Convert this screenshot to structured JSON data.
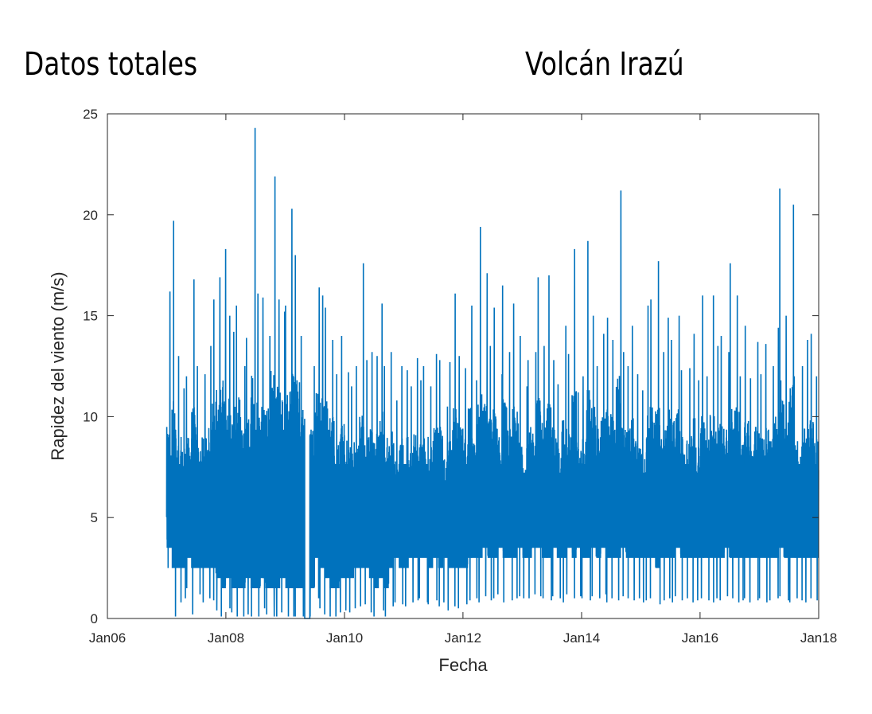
{
  "header": {
    "left_title": "Datos totales",
    "right_title": "Volcán Irazú"
  },
  "chart_data": {
    "type": "line",
    "xlabel": "Fecha",
    "ylabel": "Rapidez del viento (m/s)",
    "x_ticks": [
      "Jan06",
      "Jan08",
      "Jan10",
      "Jan12",
      "Jan14",
      "Jan16",
      "Jan18"
    ],
    "y_ticks": [
      0,
      5,
      10,
      15,
      20,
      25
    ],
    "xlim": [
      "2006-01-01",
      "2018-01-01"
    ],
    "ylim": [
      0,
      25
    ],
    "grid": false,
    "color": "#0072BD",
    "series": [
      {
        "x": [
          "2007-01",
          "2007-02",
          "2007-03",
          "2007-04",
          "2007-05",
          "2007-06",
          "2007-07",
          "2007-08",
          "2007-09",
          "2007-10",
          "2007-11",
          "2007-12",
          "2008-01",
          "2008-02",
          "2008-03",
          "2008-04",
          "2008-05",
          "2008-06",
          "2008-07",
          "2008-08",
          "2008-09",
          "2008-10",
          "2008-11",
          "2008-12",
          "2009-01",
          "2009-02",
          "2009-03",
          "2009-04",
          "2009-05",
          "2009-06",
          "2009-07",
          "2009-08",
          "2009-09",
          "2009-10",
          "2009-11",
          "2009-12",
          "2010-01",
          "2010-02",
          "2010-03",
          "2010-04",
          "2010-05",
          "2010-06",
          "2010-07",
          "2010-08",
          "2010-09",
          "2010-10",
          "2010-11",
          "2010-12",
          "2011-01",
          "2011-02",
          "2011-03",
          "2011-04",
          "2011-05",
          "2011-06",
          "2011-07",
          "2011-08",
          "2011-09",
          "2011-10",
          "2011-11",
          "2011-12",
          "2012-01",
          "2012-02",
          "2012-03",
          "2012-04",
          "2012-05",
          "2012-06",
          "2012-07",
          "2012-08",
          "2012-09",
          "2012-10",
          "2012-11",
          "2012-12",
          "2013-01",
          "2013-02",
          "2013-03",
          "2013-04",
          "2013-05",
          "2013-06",
          "2013-07",
          "2013-08",
          "2013-09",
          "2013-10",
          "2013-11",
          "2013-12",
          "2014-01",
          "2014-02",
          "2014-03",
          "2014-04",
          "2014-05",
          "2014-06",
          "2014-07",
          "2014-08",
          "2014-09",
          "2014-10",
          "2014-11",
          "2014-12",
          "2015-01",
          "2015-02",
          "2015-03",
          "2015-04",
          "2015-05",
          "2015-06",
          "2015-07",
          "2015-08",
          "2015-09",
          "2015-10",
          "2015-11",
          "2015-12",
          "2016-01",
          "2016-02",
          "2016-03",
          "2016-04",
          "2016-05",
          "2016-06",
          "2016-07",
          "2016-08",
          "2016-09",
          "2016-10",
          "2016-11",
          "2016-12",
          "2017-01",
          "2017-02",
          "2017-03",
          "2017-04",
          "2017-05",
          "2017-06",
          "2017-07",
          "2017-08",
          "2017-09",
          "2017-10",
          "2017-11",
          "2017-12"
        ],
        "max": [
          16.2,
          19.7,
          13.0,
          11.4,
          12.0,
          16.8,
          12.5,
          12.1,
          13.5,
          15.8,
          16.9,
          18.3,
          15.0,
          14.2,
          15.5,
          12.5,
          13.9,
          24.3,
          16.1,
          15.9,
          14.0,
          21.9,
          15.8,
          15.2,
          15.5,
          20.3,
          18.0,
          14.0,
          0.0,
          12.5,
          16.4,
          16.0,
          15.4,
          13.8,
          12.1,
          14.0,
          12.2,
          11.5,
          12.5,
          17.6,
          12.8,
          13.2,
          13.0,
          15.6,
          12.5,
          13.2,
          10.8,
          12.5,
          12.3,
          11.5,
          12.9,
          11.8,
          12.5,
          11.5,
          13.1,
          12.8,
          10.5,
          12.7,
          16.1,
          13.0,
          12.4,
          15.5,
          11.8,
          19.4,
          17.1,
          13.5,
          15.4,
          12.1,
          16.5,
          13.2,
          15.6,
          14.0,
          11.5,
          12.8,
          13.2,
          16.9,
          13.5,
          17.0,
          12.8,
          11.6,
          14.5,
          13.1,
          18.3,
          11.2,
          12.0,
          18.7,
          15.0,
          12.5,
          14.1,
          14.9,
          13.8,
          21.2,
          13.2,
          12.5,
          14.5,
          12.1,
          11.3,
          15.5,
          15.8,
          17.7,
          13.2,
          14.9,
          13.8,
          15.0,
          12.3,
          12.4,
          14.1,
          11.8,
          16.0,
          12.0,
          16.0,
          13.5,
          14.0,
          13.2,
          17.6,
          16.0,
          12.0,
          14.5,
          11.9,
          13.7,
          12.1,
          13.6,
          12.5,
          14.4,
          21.3,
          15.0,
          20.5,
          12.0,
          12.5,
          13.8,
          14.1,
          12.0
        ],
        "min": [
          2.5,
          0.1,
          0.8,
          1.0,
          1.5,
          0.2,
          1.2,
          0.8,
          1.0,
          0.9,
          0.4,
          0.1,
          0.5,
          0.3,
          0.1,
          0.1,
          0.2,
          0.1,
          0.1,
          0.5,
          0.2,
          0.1,
          0.1,
          0.3,
          0.1,
          0.1,
          0.1,
          0.1,
          0.0,
          0.1,
          1.0,
          0.5,
          0.2,
          0.1,
          0.1,
          0.3,
          0.4,
          0.3,
          0.5,
          0.6,
          0.7,
          0.3,
          0.1,
          0.4,
          0.1,
          0.6,
          0.8,
          0.7,
          0.6,
          0.8,
          0.9,
          1.0,
          0.8,
          0.7,
          0.9,
          0.6,
          0.8,
          0.4,
          0.6,
          0.5,
          0.7,
          0.9,
          1.0,
          0.8,
          1.1,
          0.9,
          1.0,
          1.2,
          0.8,
          0.9,
          1.0,
          1.1,
          1.0,
          1.0,
          1.2,
          1.1,
          1.0,
          0.9,
          1.1,
          1.0,
          0.8,
          1.2,
          1.0,
          1.1,
          1.0,
          0.9,
          1.1,
          1.0,
          1.2,
          0.8,
          1.0,
          0.9,
          1.1,
          1.0,
          0.9,
          1.0,
          0.8,
          0.9,
          1.0,
          0.7,
          0.9,
          1.0,
          0.8,
          1.1,
          0.9,
          1.0,
          0.8,
          0.9,
          1.0,
          0.9,
          0.8,
          1.0,
          0.9,
          1.1,
          1.0,
          0.8,
          0.9,
          1.0,
          0.8,
          0.9,
          1.0,
          0.8,
          0.9,
          1.0,
          1.1,
          0.9,
          0.8,
          1.0,
          0.9,
          0.8,
          1.0,
          0.9
        ],
        "typical_low": [
          3.5,
          2.5,
          2.5,
          2.5,
          3.0,
          2.5,
          2.5,
          2.5,
          2.5,
          2.5,
          2.0,
          1.5,
          2.0,
          1.5,
          1.5,
          1.5,
          2.0,
          1.5,
          1.5,
          2.0,
          1.5,
          1.5,
          1.5,
          2.0,
          1.5,
          1.5,
          1.5,
          1.5,
          0.0,
          1.5,
          3.0,
          2.5,
          2.0,
          1.5,
          1.5,
          2.0,
          2.0,
          2.0,
          2.5,
          2.5,
          2.5,
          2.0,
          1.5,
          2.0,
          1.5,
          2.5,
          3.0,
          2.5,
          2.5,
          3.0,
          3.0,
          3.0,
          3.0,
          2.5,
          3.0,
          2.5,
          3.0,
          2.5,
          2.5,
          2.5,
          2.5,
          3.0,
          3.0,
          3.0,
          3.5,
          3.0,
          3.0,
          3.5,
          3.0,
          3.0,
          3.0,
          3.5,
          3.0,
          3.0,
          3.5,
          3.5,
          3.0,
          3.0,
          3.5,
          3.0,
          3.0,
          3.5,
          3.0,
          3.5,
          3.0,
          3.0,
          3.5,
          3.0,
          3.5,
          3.0,
          3.0,
          3.0,
          3.5,
          3.0,
          3.0,
          3.0,
          3.0,
          3.0,
          3.0,
          2.5,
          3.0,
          3.0,
          3.0,
          3.5,
          3.0,
          3.0,
          3.0,
          3.0,
          3.0,
          3.0,
          3.0,
          3.0,
          3.0,
          3.5,
          3.0,
          3.0,
          3.0,
          3.0,
          3.0,
          3.0,
          3.0,
          3.0,
          3.0,
          3.0,
          3.5,
          3.0,
          3.0,
          3.0,
          3.0,
          3.0,
          3.0,
          3.0
        ],
        "typical_high": [
          9.5,
          11.0,
          9.0,
          8.5,
          9.0,
          10.5,
          9.0,
          9.0,
          9.5,
          11.0,
          11.5,
          12.0,
          11.0,
          10.5,
          11.0,
          9.5,
          10.0,
          12.5,
          11.0,
          11.0,
          10.5,
          12.5,
          11.5,
          11.0,
          11.5,
          12.5,
          12.0,
          10.5,
          0.0,
          9.5,
          11.5,
          11.5,
          11.0,
          10.0,
          9.0,
          10.0,
          9.0,
          8.5,
          9.0,
          10.5,
          9.0,
          9.5,
          9.5,
          10.5,
          9.0,
          9.5,
          8.0,
          9.0,
          9.0,
          8.5,
          9.5,
          9.0,
          9.0,
          8.5,
          9.5,
          9.5,
          8.0,
          9.5,
          10.5,
          9.5,
          9.0,
          10.5,
          9.0,
          11.5,
          11.0,
          10.0,
          10.5,
          9.0,
          11.0,
          9.5,
          10.5,
          10.0,
          8.5,
          9.5,
          9.5,
          11.0,
          10.0,
          11.0,
          9.5,
          8.5,
          10.0,
          9.5,
          11.5,
          8.5,
          9.0,
          11.5,
          10.5,
          9.5,
          10.0,
          10.5,
          10.0,
          12.5,
          9.5,
          9.5,
          10.0,
          9.0,
          8.5,
          10.5,
          10.5,
          11.0,
          9.5,
          10.5,
          10.0,
          10.5,
          9.0,
          9.0,
          10.0,
          8.5,
          10.5,
          9.0,
          10.5,
          9.5,
          10.0,
          9.5,
          11.0,
          10.5,
          9.0,
          10.0,
          8.5,
          9.5,
          9.0,
          9.5,
          9.0,
          10.0,
          12.0,
          10.5,
          12.0,
          9.0,
          9.0,
          9.5,
          10.0,
          9.0
        ]
      }
    ]
  }
}
